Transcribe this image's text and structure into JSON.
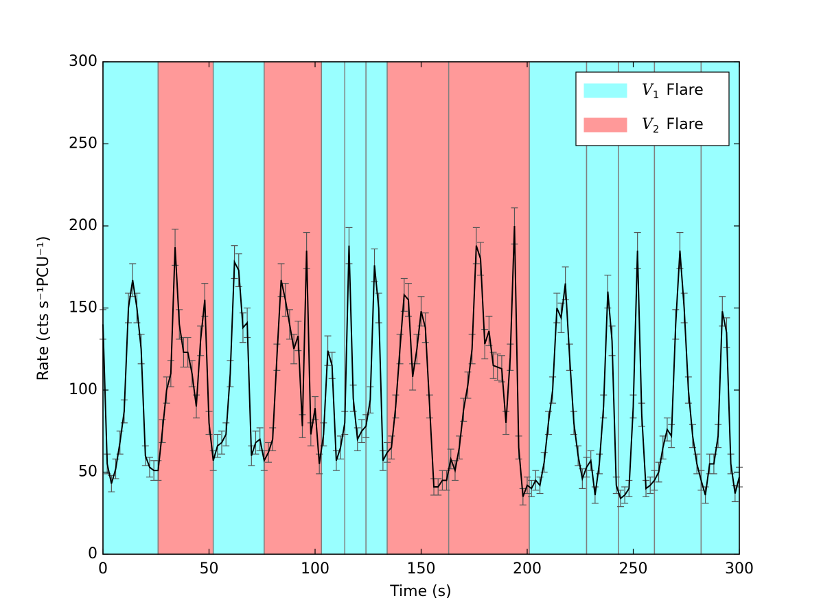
{
  "chart_data": {
    "type": "line",
    "xlabel": "Time (s)",
    "ylabel": "Rate (cts s⁻¹PCU⁻¹)",
    "xlim": [
      0,
      300
    ],
    "ylim": [
      0,
      300
    ],
    "xticks": [
      0,
      50,
      100,
      150,
      200,
      250,
      300
    ],
    "yticks": [
      0,
      50,
      100,
      150,
      200,
      250,
      300
    ],
    "grid": false,
    "color": "#000000",
    "legend_position": "upper right",
    "legend": [
      {
        "symbol": "V",
        "subscript": "1",
        "label": "Flare",
        "color": "#99ffff"
      },
      {
        "symbol": "V",
        "subscript": "2",
        "label": "Flare",
        "color": "#ff9999"
      }
    ],
    "regions": [
      {
        "start": 0,
        "end": 26,
        "color": "#99ffff"
      },
      {
        "start": 26,
        "end": 52,
        "color": "#ff9999"
      },
      {
        "start": 52,
        "end": 76,
        "color": "#99ffff"
      },
      {
        "start": 76,
        "end": 103,
        "color": "#ff9999"
      },
      {
        "start": 103,
        "end": 114,
        "color": "#99ffff"
      },
      {
        "start": 114,
        "end": 124,
        "color": "#99ffff"
      },
      {
        "start": 124,
        "end": 134,
        "color": "#99ffff"
      },
      {
        "start": 134,
        "end": 163,
        "color": "#ff9999"
      },
      {
        "start": 163,
        "end": 201,
        "color": "#ff9999"
      },
      {
        "start": 201,
        "end": 228,
        "color": "#99ffff"
      },
      {
        "start": 228,
        "end": 243,
        "color": "#99ffff"
      },
      {
        "start": 243,
        "end": 260,
        "color": "#99ffff"
      },
      {
        "start": 260,
        "end": 282,
        "color": "#99ffff"
      },
      {
        "start": 282,
        "end": 300,
        "color": "#99ffff"
      }
    ],
    "x": [
      0,
      2,
      4,
      6,
      8,
      10,
      12,
      14,
      16,
      18,
      20,
      22,
      24,
      26,
      28,
      30,
      32,
      34,
      36,
      38,
      40,
      42,
      44,
      46,
      48,
      50,
      52,
      54,
      56,
      58,
      60,
      62,
      64,
      66,
      68,
      70,
      72,
      74,
      76,
      78,
      80,
      82,
      84,
      86,
      88,
      90,
      92,
      94,
      96,
      98,
      100,
      102,
      104,
      106,
      108,
      110,
      112,
      114,
      116,
      118,
      120,
      122,
      124,
      126,
      128,
      130,
      132,
      134,
      136,
      138,
      140,
      142,
      144,
      146,
      148,
      150,
      152,
      154,
      156,
      158,
      160,
      162,
      164,
      166,
      168,
      170,
      172,
      174,
      176,
      178,
      180,
      182,
      184,
      186,
      188,
      190,
      192,
      194,
      196,
      198,
      200,
      202,
      204,
      206,
      208,
      210,
      212,
      214,
      216,
      218,
      220,
      222,
      224,
      226,
      228,
      230,
      232,
      234,
      236,
      238,
      240,
      242,
      244,
      246,
      248,
      250,
      252,
      254,
      256,
      258,
      260,
      262,
      264,
      266,
      268,
      270,
      272,
      274,
      276,
      278,
      280,
      282,
      284,
      286,
      288,
      290,
      292,
      294,
      296,
      298,
      300
    ],
    "values": [
      140,
      55,
      43,
      52,
      68,
      87,
      150,
      167,
      150,
      125,
      60,
      53,
      51,
      51,
      75,
      100,
      110,
      187,
      140,
      123,
      123,
      110,
      90,
      130,
      155,
      80,
      57,
      66,
      68,
      73,
      110,
      178,
      173,
      138,
      141,
      60,
      68,
      70,
      57,
      62,
      70,
      120,
      167,
      155,
      140,
      125,
      133,
      78,
      185,
      73,
      89,
      55,
      73,
      124,
      115,
      57,
      65,
      80,
      188,
      95,
      70,
      75,
      78,
      94,
      176,
      150,
      57,
      62,
      65,
      90,
      125,
      158,
      155,
      108,
      125,
      148,
      138,
      90,
      41,
      41,
      45,
      45,
      58,
      51,
      65,
      88,
      103,
      125,
      188,
      180,
      128,
      136,
      115,
      114,
      113,
      80,
      120,
      200,
      65,
      35,
      42,
      40,
      45,
      42,
      56,
      80,
      100,
      150,
      144,
      165,
      120,
      80,
      60,
      46,
      53,
      57,
      36,
      55,
      90,
      160,
      130,
      42,
      34,
      36,
      40,
      90,
      185,
      85,
      40,
      42,
      45,
      50,
      65,
      76,
      72,
      140,
      185,
      150,
      100,
      72,
      55,
      45,
      36,
      55,
      55,
      72,
      148,
      135,
      55,
      37,
      47
    ],
    "errors": [
      9,
      6,
      5,
      6,
      7,
      7,
      9,
      10,
      9,
      9,
      6,
      6,
      6,
      6,
      7,
      8,
      8,
      11,
      9,
      9,
      9,
      8,
      7,
      9,
      10,
      7,
      6,
      7,
      7,
      7,
      8,
      10,
      10,
      9,
      9,
      6,
      7,
      7,
      6,
      6,
      7,
      8,
      10,
      10,
      9,
      9,
      9,
      7,
      11,
      7,
      7,
      6,
      7,
      9,
      8,
      6,
      7,
      7,
      11,
      8,
      7,
      7,
      7,
      8,
      10,
      9,
      6,
      6,
      7,
      7,
      9,
      10,
      10,
      8,
      9,
      9,
      9,
      7,
      5,
      5,
      6,
      6,
      6,
      6,
      7,
      7,
      8,
      9,
      11,
      10,
      9,
      9,
      8,
      8,
      8,
      7,
      8,
      11,
      7,
      5,
      5,
      5,
      6,
      5,
      6,
      7,
      8,
      9,
      9,
      10,
      8,
      7,
      6,
      6,
      6,
      6,
      5,
      6,
      7,
      10,
      9,
      5,
      5,
      5,
      5,
      7,
      11,
      7,
      5,
      5,
      6,
      6,
      7,
      7,
      7,
      9,
      11,
      9,
      8,
      7,
      6,
      6,
      5,
      6,
      6,
      7,
      9,
      9,
      6,
      5,
      6
    ]
  }
}
